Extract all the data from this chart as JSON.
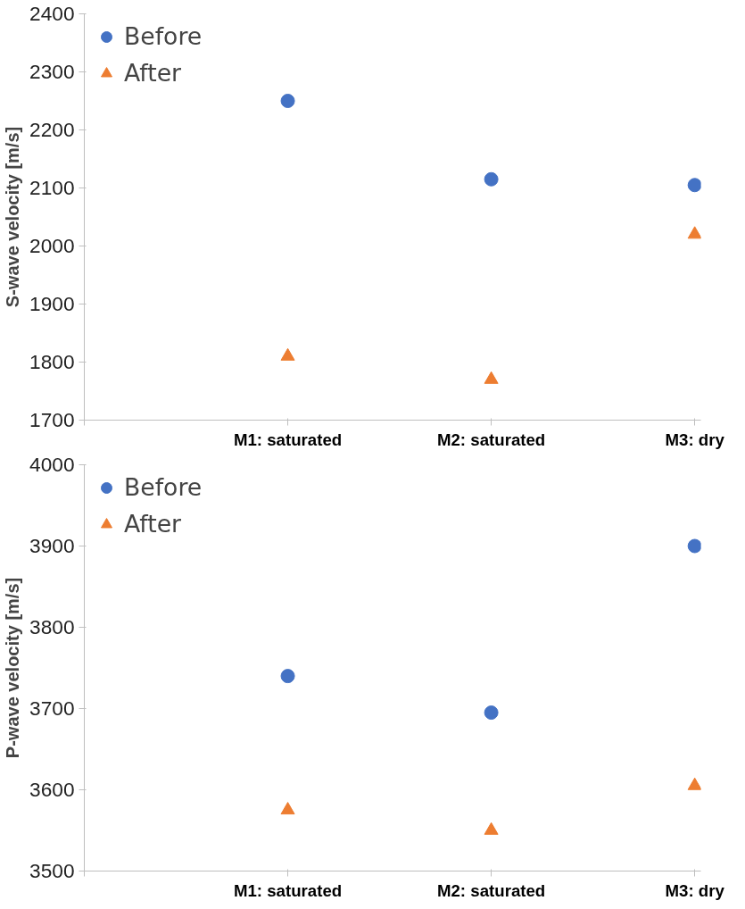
{
  "chart_data": [
    {
      "type": "scatter",
      "ylabel": "S-wave velocity [m/s]",
      "categories": [
        null,
        "M1: saturated",
        "M2: saturated",
        "M3: dry"
      ],
      "ylim": [
        1700,
        2400
      ],
      "yticks": [
        1700,
        1800,
        1900,
        2000,
        2100,
        2200,
        2300,
        2400
      ],
      "grid": false,
      "legend": "top left",
      "series": [
        {
          "name": "Before",
          "color": "#4472c4",
          "marker": "circle",
          "values": [
            null,
            2250,
            2115,
            2105
          ]
        },
        {
          "name": "After",
          "color": "#ed7d31",
          "marker": "triangle",
          "values": [
            null,
            1810,
            1770,
            2020
          ]
        }
      ]
    },
    {
      "type": "scatter",
      "ylabel": "P-wave velocity [m/s]",
      "categories": [
        null,
        "M1: saturated",
        "M2: saturated",
        "M3: dry"
      ],
      "ylim": [
        3500,
        4000
      ],
      "yticks": [
        3500,
        3600,
        3700,
        3800,
        3900,
        4000
      ],
      "grid": false,
      "legend": "top left",
      "series": [
        {
          "name": "Before",
          "color": "#4472c4",
          "marker": "circle",
          "values": [
            null,
            3740,
            3695,
            3900
          ]
        },
        {
          "name": "After",
          "color": "#ed7d31",
          "marker": "triangle",
          "values": [
            null,
            3575,
            3550,
            3605
          ]
        }
      ]
    }
  ]
}
